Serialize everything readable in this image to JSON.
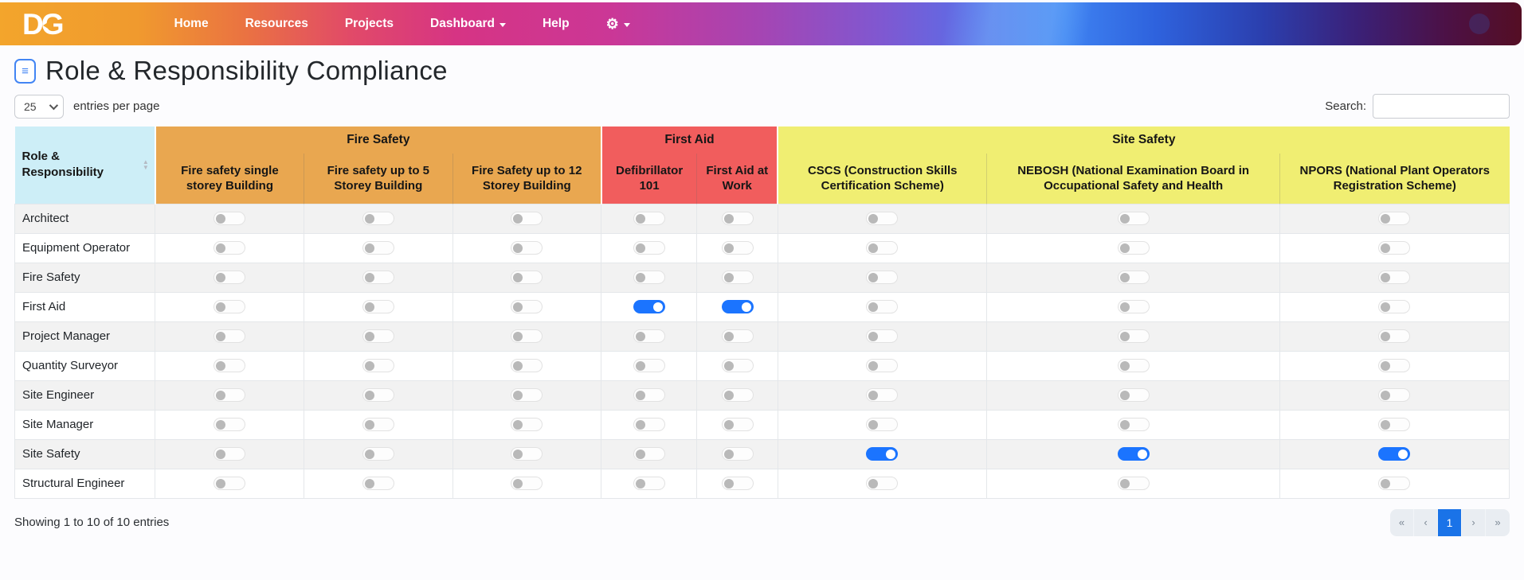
{
  "colors": {
    "role": "#cdeef7",
    "fire": "#e9a750",
    "firstaid": "#f15d5d",
    "site": "#f0ee72",
    "toggle_on": "#1b74ff",
    "page_active": "#1a73e8"
  },
  "navbar": {
    "logo": "DG",
    "items": [
      {
        "label": "Home"
      },
      {
        "label": "Resources"
      },
      {
        "label": "Projects"
      },
      {
        "label": "Dashboard",
        "caret": true
      },
      {
        "label": "Help"
      },
      {
        "label": "⚙",
        "caret": true,
        "icon": "gear"
      }
    ]
  },
  "page": {
    "title": "Role & Responsibility Compliance"
  },
  "controls": {
    "entries_value": "25",
    "entries_label": "entries per page",
    "search_label": "Search:",
    "search_value": ""
  },
  "table": {
    "role_header": "Role & Responsibility",
    "groups": [
      {
        "key": "fire",
        "label": "Fire Safety",
        "columns": [
          "Fire safety single storey Building",
          "Fire safety up to 5 Storey Building",
          "Fire Safety up to 12 Storey Building"
        ]
      },
      {
        "key": "firstaid",
        "label": "First Aid",
        "columns": [
          "Defibrillator 101",
          "First Aid at Work"
        ]
      },
      {
        "key": "site",
        "label": "Site Safety",
        "columns": [
          "CSCS (Construction Skills Certification Scheme)",
          "NEBOSH (National Examination Board in Occupational Safety and Health",
          "NPORS (National Plant Operators Registration Scheme)"
        ]
      }
    ],
    "rows": [
      {
        "role": "Architect",
        "toggles": [
          0,
          0,
          0,
          0,
          0,
          0,
          0,
          0
        ]
      },
      {
        "role": "Equipment Operator",
        "toggles": [
          0,
          0,
          0,
          0,
          0,
          0,
          0,
          0
        ]
      },
      {
        "role": "Fire Safety",
        "toggles": [
          0,
          0,
          0,
          0,
          0,
          0,
          0,
          0
        ]
      },
      {
        "role": "First Aid",
        "toggles": [
          0,
          0,
          0,
          1,
          1,
          0,
          0,
          0
        ]
      },
      {
        "role": "Project Manager",
        "toggles": [
          0,
          0,
          0,
          0,
          0,
          0,
          0,
          0
        ]
      },
      {
        "role": "Quantity Surveyor",
        "toggles": [
          0,
          0,
          0,
          0,
          0,
          0,
          0,
          0
        ]
      },
      {
        "role": "Site Engineer",
        "toggles": [
          0,
          0,
          0,
          0,
          0,
          0,
          0,
          0
        ]
      },
      {
        "role": "Site Manager",
        "toggles": [
          0,
          0,
          0,
          0,
          0,
          0,
          0,
          0
        ]
      },
      {
        "role": "Site Safety",
        "toggles": [
          0,
          0,
          0,
          0,
          0,
          1,
          1,
          1
        ]
      },
      {
        "role": "Structural Engineer",
        "toggles": [
          0,
          0,
          0,
          0,
          0,
          0,
          0,
          0
        ]
      }
    ]
  },
  "footer": {
    "showing": "Showing 1 to 10 of 10 entries",
    "pagination": [
      {
        "label": "«",
        "name": "first"
      },
      {
        "label": "‹",
        "name": "prev"
      },
      {
        "label": "1",
        "name": "page-1",
        "active": true
      },
      {
        "label": "›",
        "name": "next"
      },
      {
        "label": "»",
        "name": "last"
      }
    ]
  }
}
